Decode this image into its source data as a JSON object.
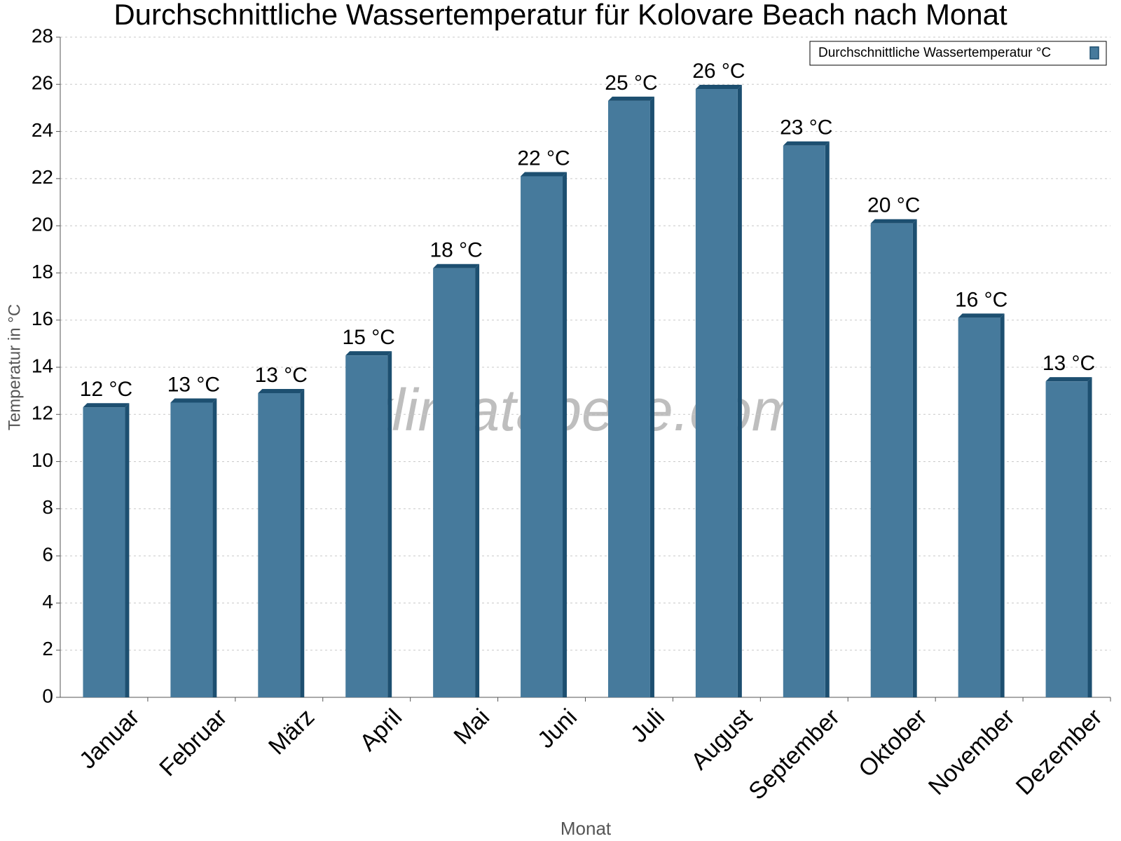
{
  "chart_data": {
    "type": "bar",
    "title": "Durchschnittliche Wassertemperatur für Kolovare Beach nach Monat",
    "x_label": "Monat",
    "y_label": "Temperatur in °C",
    "watermark": "klimatabelle.com",
    "categories": [
      "Januar",
      "Februar",
      "März",
      "April",
      "Mai",
      "Juni",
      "Juli",
      "August",
      "September",
      "Oktober",
      "November",
      "Dezember"
    ],
    "series": [
      {
        "name": "Durchschnittliche Wassertemperatur °C",
        "color": "#467a9c",
        "values": [
          12.3,
          12.5,
          12.9,
          14.5,
          18.2,
          22.1,
          25.3,
          25.8,
          23.4,
          20.1,
          16.1,
          13.4
        ],
        "value_labels": [
          "12 °C",
          "13 °C",
          "13 °C",
          "15 °C",
          "18 °C",
          "22 °C",
          "25 °C",
          "26 °C",
          "23 °C",
          "20 °C",
          "16 °C",
          "13 °C"
        ]
      }
    ],
    "ylim": [
      0,
      28
    ],
    "yticks": [
      0,
      2,
      4,
      6,
      8,
      10,
      12,
      14,
      16,
      18,
      20,
      22,
      24,
      26,
      28
    ],
    "grid": true,
    "legend": "top-right"
  }
}
